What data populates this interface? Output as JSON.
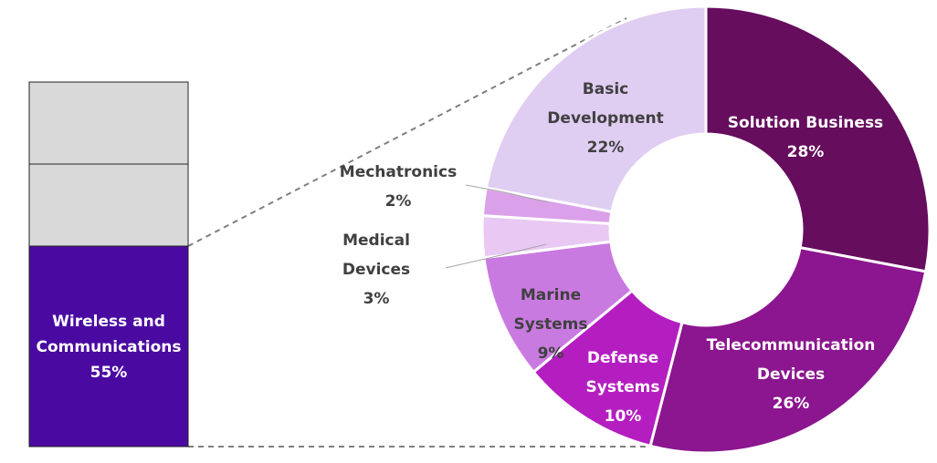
{
  "chart_data": [
    {
      "type": "bar",
      "stacked": true,
      "values": [
        55,
        45
      ],
      "segments": [
        {
          "label_lines": [
            "Wireless and",
            "Communications",
            "55%"
          ],
          "value": 55,
          "color": "#4a0aa2",
          "text_color": "#ffffff"
        },
        {
          "label_lines": [],
          "value": 22.5,
          "color": "#d9d9d9"
        },
        {
          "label_lines": [],
          "value": 22.5,
          "color": "#d9d9d9"
        }
      ]
    },
    {
      "type": "pie",
      "donut": true,
      "categories": [
        "Solution Business",
        "Telecommunication Devices",
        "Defense Systems",
        "Marine Systems",
        "Medical Devices",
        "Mechatronics",
        "Basic Development"
      ],
      "values": [
        28,
        26,
        10,
        9,
        3,
        2,
        22
      ],
      "slices": [
        {
          "label_lines": [
            "Solution Business",
            "28%"
          ],
          "value": 28,
          "color": "#660d5e",
          "text_color": "#ffffff"
        },
        {
          "label_lines": [
            "Telecommunication",
            "Devices",
            "26%"
          ],
          "value": 26,
          "color": "#8b168f",
          "text_color": "#ffffff"
        },
        {
          "label_lines": [
            "Defense",
            "Systems",
            "10%"
          ],
          "value": 10,
          "color": "#b41ec0",
          "text_color": "#ffffff"
        },
        {
          "label_lines": [
            "Marine",
            "Systems",
            "9%"
          ],
          "value": 9,
          "color": "#c97ae0",
          "text_color": "#404040"
        },
        {
          "label_lines": [
            "Medical",
            "Devices",
            "3%"
          ],
          "value": 3,
          "color": "#e9c8f3",
          "text_color": "#404040"
        },
        {
          "label_lines": [
            "Mechatronics",
            "2%"
          ],
          "value": 2,
          "color": "#dba0ea",
          "text_color": "#404040"
        },
        {
          "label_lines": [
            "Basic",
            "Development",
            "22%"
          ],
          "value": 22,
          "color": "#e0cdf2",
          "text_color": "#404040"
        }
      ]
    }
  ]
}
